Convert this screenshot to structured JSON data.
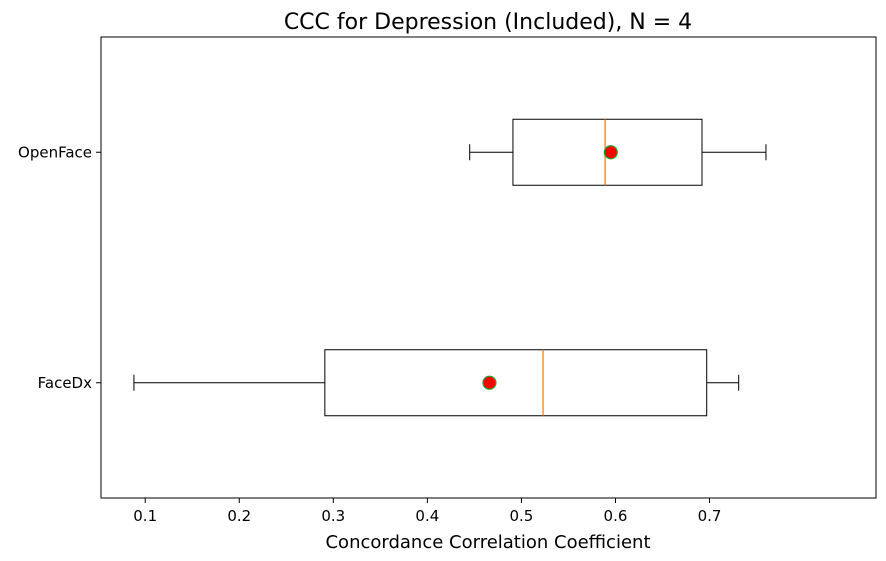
{
  "chart_data": {
    "type": "boxplot",
    "orientation": "horizontal",
    "title": "CCC for Depression (Included), N = 4",
    "xlabel": "Concordance Correlation Coefficient",
    "ylabel": "",
    "xlim": [
      0.053,
      0.877
    ],
    "xticks": [
      0.1,
      0.2,
      0.3,
      0.4,
      0.5,
      0.6,
      0.7
    ],
    "xtick_labels": [
      "0.1",
      "0.2",
      "0.3",
      "0.4",
      "0.5",
      "0.6",
      "0.7"
    ],
    "grid": false,
    "categories": [
      "FaceDx",
      "OpenFace"
    ],
    "boxes": [
      {
        "label": "FaceDx",
        "whisker_low": 0.088,
        "q1": 0.291,
        "median": 0.523,
        "q3": 0.697,
        "whisker_high": 0.731,
        "mean": 0.466
      },
      {
        "label": "OpenFace",
        "whisker_low": 0.445,
        "q1": 0.491,
        "median": 0.589,
        "q3": 0.692,
        "whisker_high": 0.76,
        "mean": 0.595
      }
    ],
    "colors": {
      "box": "#000000",
      "median": "#ff7f0e",
      "mean_fill": "#ff0000",
      "mean_edge": "#2ca02c"
    }
  }
}
